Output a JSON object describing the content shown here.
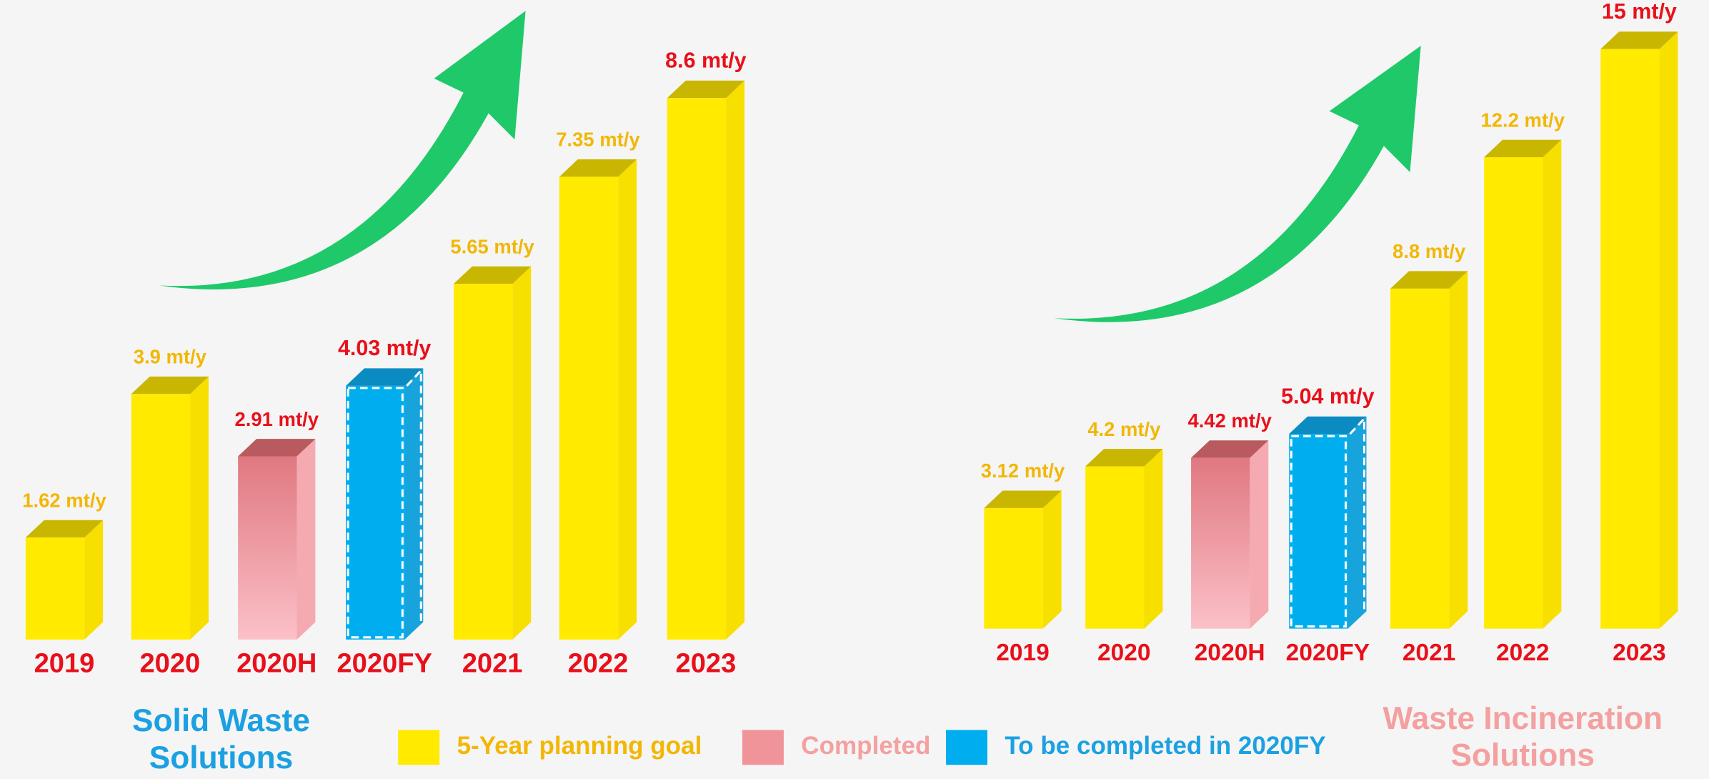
{
  "chart_data": [
    {
      "type": "bar",
      "title": "Solid Waste Solutions",
      "categories": [
        "2019",
        "2020",
        "2020H",
        "2020FY",
        "2021",
        "2022",
        "2023"
      ],
      "values": [
        1.62,
        3.9,
        2.91,
        4.03,
        5.65,
        7.35,
        8.6
      ],
      "value_labels": [
        "1.62 mt/y",
        "3.9 mt/y",
        "2.91 mt/y",
        "4.03 mt/y",
        "5.65 mt/y",
        "7.35 mt/y",
        "8.6 mt/y"
      ],
      "colors": [
        "#ffea00",
        "#ffea00",
        "#f0949a",
        "#00aeef",
        "#ffea00",
        "#ffea00",
        "#ffea00"
      ],
      "label_colors": [
        "#f2b705",
        "#f2b705",
        "#e8101a",
        "#e8101a",
        "#f2b705",
        "#f2b705",
        "#e8101a"
      ]
    },
    {
      "type": "bar",
      "title": "Waste Incineration Solutions",
      "categories": [
        "2019",
        "2020",
        "2020H",
        "2020FY",
        "2021",
        "2022",
        "2023"
      ],
      "values": [
        3.12,
        4.2,
        4.42,
        5.04,
        8.8,
        12.2,
        15
      ],
      "value_labels": [
        "3.12 mt/y",
        "4.2 mt/y",
        "4.42 mt/y",
        "5.04 mt/y",
        "8.8 mt/y",
        "12.2 mt/y",
        "15 mt/y"
      ],
      "colors": [
        "#ffea00",
        "#ffea00",
        "#f0949a",
        "#00aeef",
        "#ffea00",
        "#ffea00",
        "#ffea00"
      ],
      "label_colors": [
        "#f2b705",
        "#f2b705",
        "#e8101a",
        "#e8101a",
        "#f2b705",
        "#f2b705",
        "#e8101a"
      ]
    }
  ],
  "legend": [
    {
      "label": "5-Year planning goal",
      "color": "#ffea00",
      "text_color": "#f2b705"
    },
    {
      "label": "Completed",
      "color": "#f0949a",
      "text_color": "#f4a0a0"
    },
    {
      "label": "To be completed in 2020FY",
      "color": "#00aeef",
      "text_color": "#1ba1e2"
    }
  ]
}
